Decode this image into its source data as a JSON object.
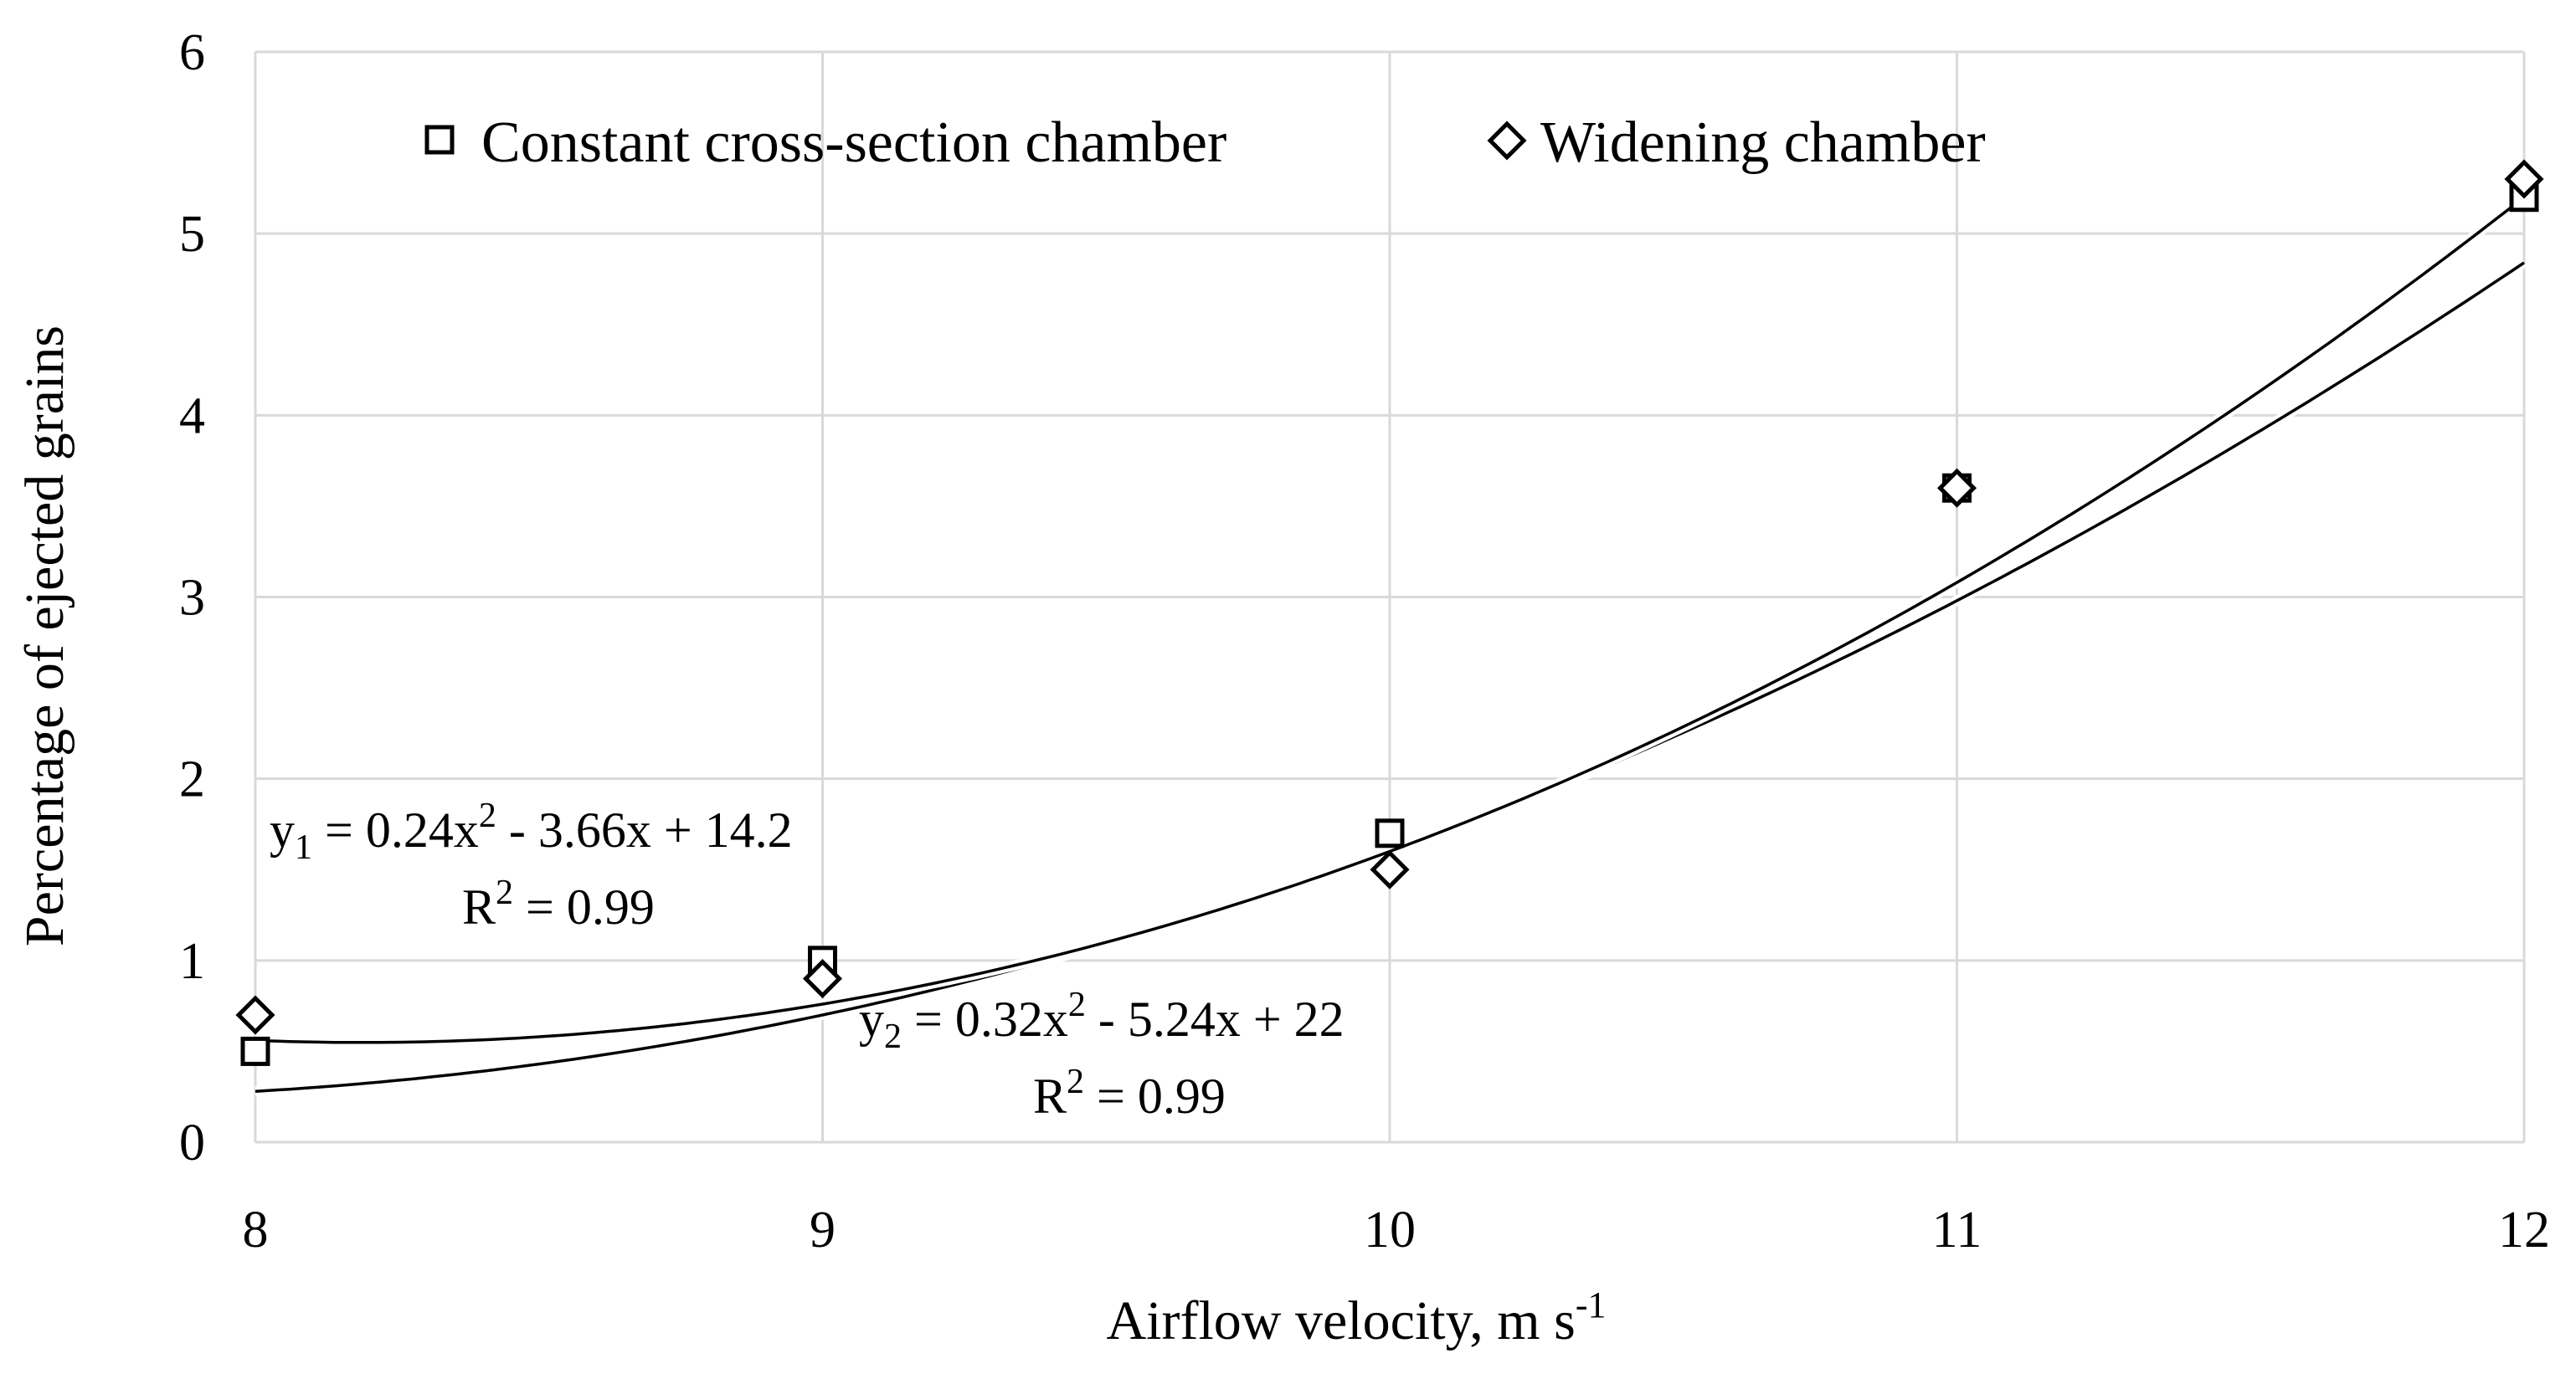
{
  "chart_data": {
    "type": "scatter",
    "title": "",
    "xlabel": "Airflow  velocity, m s",
    "xlabel_superscript": "-1",
    "ylabel": "Percentage of ejected grains",
    "xlim": [
      8,
      12
    ],
    "ylim": [
      0,
      6
    ],
    "x_ticks": [
      8,
      9,
      10,
      11,
      12
    ],
    "y_ticks": [
      0,
      1,
      2,
      3,
      4,
      5,
      6
    ],
    "grid": true,
    "legend_position": "top",
    "series": [
      {
        "name": "Constant cross-section chamber",
        "marker": "square",
        "x": [
          8,
          9,
          10,
          11,
          12
        ],
        "y": [
          0.5,
          1.0,
          1.7,
          3.6,
          5.2
        ],
        "trendline": {
          "a": 0.24,
          "b": -3.66,
          "c": 14.2
        }
      },
      {
        "name": "Widening chamber",
        "marker": "diamond",
        "x": [
          8,
          9,
          10,
          11,
          12
        ],
        "y": [
          0.7,
          0.9,
          1.5,
          3.6,
          5.3
        ],
        "trendline": {
          "a": 0.32,
          "b": -5.24,
          "c": 22
        }
      }
    ],
    "annotations": [
      {
        "y_sub": "1",
        "equation": " = 0.24x",
        "exp": "2",
        "rest": " - 3.66x + 14.2",
        "r2_label": "R",
        "r2_exp": "2",
        "r2_value": " = 0.99"
      },
      {
        "y_sub": "2",
        "equation": " = 0.32x",
        "exp": "2",
        "rest": " - 5.24x + 22",
        "r2_label": "R",
        "r2_exp": "2",
        "r2_value": " = 0.99"
      }
    ]
  }
}
